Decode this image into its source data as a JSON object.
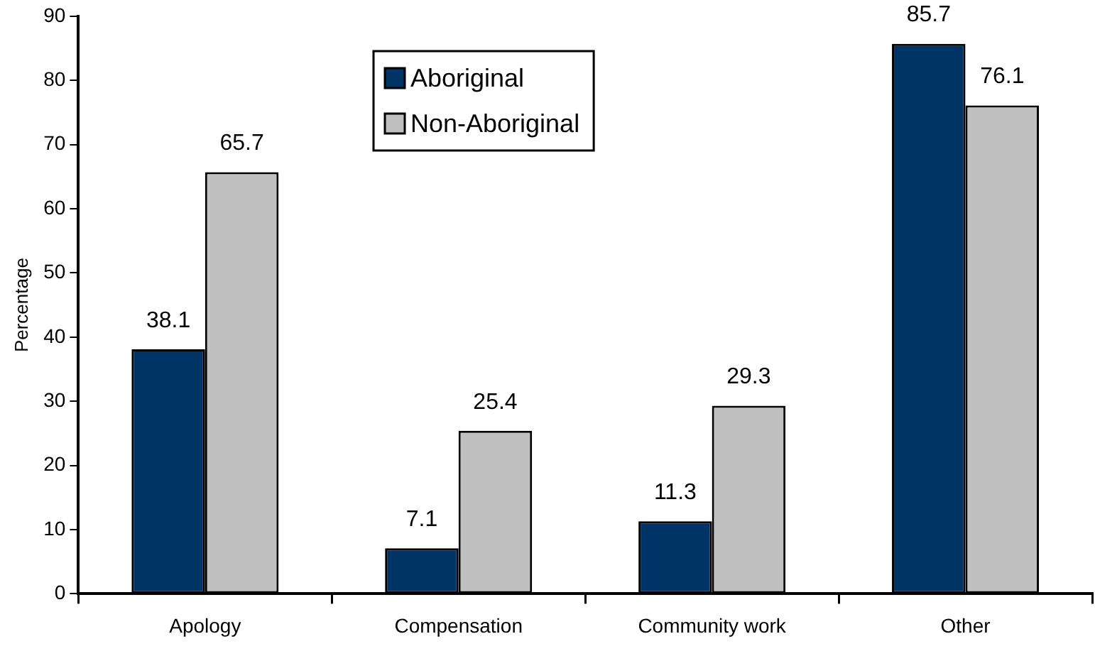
{
  "chart_data": {
    "type": "bar",
    "ylabel": "Percentage",
    "categories": [
      "Apology",
      "Compensation",
      "Community work",
      "Other"
    ],
    "series": [
      {
        "name": "Aboriginal",
        "color": "#003366",
        "values": [
          38.1,
          7.1,
          11.3,
          85.7
        ]
      },
      {
        "name": "Non-Aboriginal",
        "color": "#c0c0c0",
        "values": [
          65.7,
          25.4,
          29.3,
          76.1
        ]
      }
    ],
    "ylim": [
      0,
      90
    ],
    "yticks": [
      0,
      10,
      20,
      30,
      40,
      50,
      60,
      70,
      80,
      90
    ],
    "grid": false,
    "legend": "top",
    "data_labels": true
  }
}
